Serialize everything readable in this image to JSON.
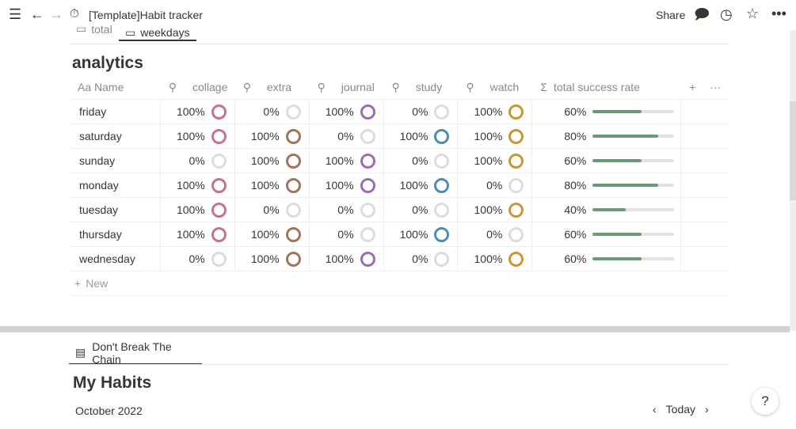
{
  "topbar": {
    "title": "[Template]Habit tracker",
    "share": "Share"
  },
  "tabs": [
    {
      "label": "total"
    },
    {
      "label": "weekdays"
    }
  ],
  "table": {
    "title": "analytics",
    "headers": [
      "Name",
      "collage",
      "extra",
      "journal",
      "study",
      "watch",
      "total success rate"
    ],
    "name_prefix": "Aa",
    "sum_icon": "Σ",
    "rows": [
      {
        "name": "friday",
        "vals": [
          "100%",
          "0%",
          "100%",
          "0%",
          "100%"
        ],
        "total": "60%",
        "rate": 60
      },
      {
        "name": "saturday",
        "vals": [
          "100%",
          "100%",
          "0%",
          "100%",
          "100%"
        ],
        "total": "80%",
        "rate": 80
      },
      {
        "name": "sunday",
        "vals": [
          "0%",
          "100%",
          "100%",
          "0%",
          "100%"
        ],
        "total": "60%",
        "rate": 60
      },
      {
        "name": "monday",
        "vals": [
          "100%",
          "100%",
          "100%",
          "100%",
          "0%"
        ],
        "total": "80%",
        "rate": 80
      },
      {
        "name": "tuesday",
        "vals": [
          "100%",
          "0%",
          "0%",
          "0%",
          "100%"
        ],
        "total": "40%",
        "rate": 40
      },
      {
        "name": "thursday",
        "vals": [
          "100%",
          "100%",
          "0%",
          "100%",
          "0%"
        ],
        "total": "60%",
        "rate": 60
      },
      {
        "name": "wednesday",
        "vals": [
          "0%",
          "100%",
          "100%",
          "0%",
          "100%"
        ],
        "total": "60%",
        "rate": 60
      }
    ],
    "new_label": "New",
    "colors": [
      "#c96e94",
      "#a5725a",
      "#9a6db3",
      "#4f8cb3",
      "#c89638"
    ]
  },
  "bottom": {
    "tab": "Don't Break The Chain",
    "title": "My Habits",
    "month": "October 2022",
    "today": "Today",
    "help": "?"
  }
}
